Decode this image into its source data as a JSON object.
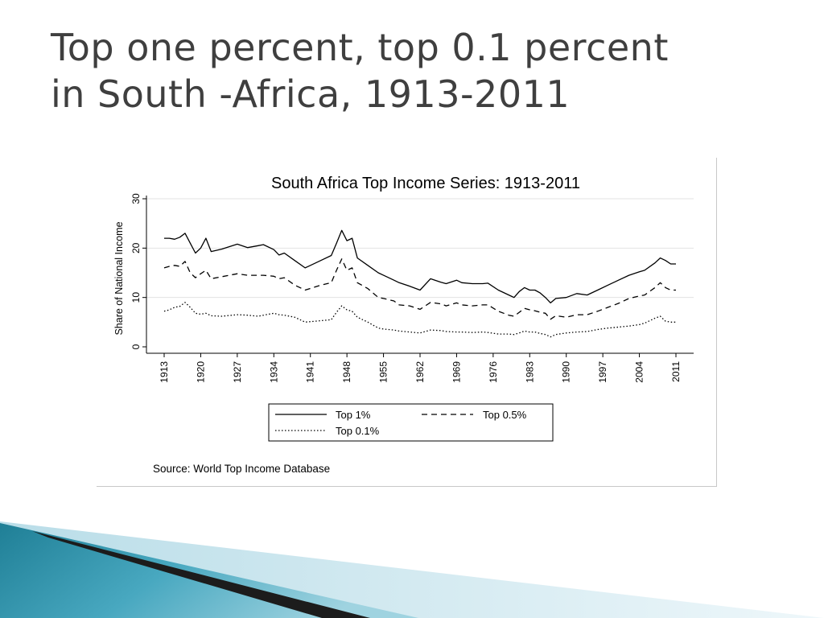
{
  "slide": {
    "title_line1": "Top one percent, top 0.1 percent",
    "title_line2": "in South -Africa, 1913-2011"
  },
  "colors": {
    "title": "#3f3f3f",
    "series": "#000000",
    "grid": "#e3e3e3",
    "accent_teal": "#2b8fa6",
    "accent_dark": "#1c1c1c"
  },
  "chart_data": {
    "type": "line",
    "title": "South Africa Top Income Series: 1913-2011",
    "ylabel": "Share of National Income",
    "xlabel": "",
    "xlim": [
      1913,
      2011
    ],
    "ylim": [
      0,
      30
    ],
    "xticks": [
      "1913",
      "1920",
      "1927",
      "1934",
      "1941",
      "1948",
      "1955",
      "1962",
      "1969",
      "1976",
      "1983",
      "1990",
      "1997",
      "2004",
      "2011"
    ],
    "yticks": [
      "0",
      "10",
      "20",
      "30"
    ],
    "grid": "horizontal",
    "legend_position": "bottom",
    "source": "Source: World Top Income Database",
    "series": [
      {
        "name": "Top 1%",
        "style": "solid",
        "points": [
          [
            1913,
            22
          ],
          [
            1914,
            22
          ],
          [
            1915,
            21.8
          ],
          [
            1916,
            22.2
          ],
          [
            1917,
            23
          ],
          [
            1918,
            21
          ],
          [
            1919,
            19
          ],
          [
            1920,
            20
          ],
          [
            1921,
            22
          ],
          [
            1922,
            19.3
          ],
          [
            1924,
            19.8
          ],
          [
            1927,
            20.8
          ],
          [
            1929,
            20.1
          ],
          [
            1931,
            20.5
          ],
          [
            1932,
            20.7
          ],
          [
            1934,
            19.7
          ],
          [
            1935,
            18.6
          ],
          [
            1936,
            19
          ],
          [
            1938,
            17.5
          ],
          [
            1940,
            16
          ],
          [
            1943,
            17.5
          ],
          [
            1945,
            18.5
          ],
          [
            1946,
            21
          ],
          [
            1947,
            23.6
          ],
          [
            1948,
            21.5
          ],
          [
            1949,
            22
          ],
          [
            1950,
            18
          ],
          [
            1952,
            16.5
          ],
          [
            1954,
            15
          ],
          [
            1955,
            14.5
          ],
          [
            1957,
            13.5
          ],
          [
            1958,
            13
          ],
          [
            1960,
            12.3
          ],
          [
            1962,
            11.5
          ],
          [
            1964,
            13.8
          ],
          [
            1966,
            13.1
          ],
          [
            1967,
            12.8
          ],
          [
            1969,
            13.5
          ],
          [
            1970,
            13
          ],
          [
            1972,
            12.8
          ],
          [
            1974,
            12.8
          ],
          [
            1975,
            12.9
          ],
          [
            1977,
            11.5
          ],
          [
            1979,
            10.5
          ],
          [
            1980,
            10
          ],
          [
            1981,
            11.2
          ],
          [
            1982,
            12
          ],
          [
            1983,
            11.5
          ],
          [
            1984,
            11.5
          ],
          [
            1985,
            10.9
          ],
          [
            1986,
            10
          ],
          [
            1987,
            8.9
          ],
          [
            1988,
            9.8
          ],
          [
            1990,
            10
          ],
          [
            1992,
            10.8
          ],
          [
            1994,
            10.5
          ],
          [
            1996,
            11.5
          ],
          [
            1998,
            12.5
          ],
          [
            2000,
            13.5
          ],
          [
            2002,
            14.5
          ],
          [
            2004,
            15.2
          ],
          [
            2005,
            15.5
          ],
          [
            2007,
            17
          ],
          [
            2008,
            18
          ],
          [
            2009,
            17.5
          ],
          [
            2010,
            16.8
          ],
          [
            2011,
            16.8
          ]
        ]
      },
      {
        "name": "Top 0.5%",
        "style": "dashed",
        "points": [
          [
            1913,
            16
          ],
          [
            1914,
            16.3
          ],
          [
            1915,
            16.5
          ],
          [
            1916,
            16.3
          ],
          [
            1917,
            17.3
          ],
          [
            1918,
            15
          ],
          [
            1919,
            14
          ],
          [
            1920,
            14.8
          ],
          [
            1921,
            15.5
          ],
          [
            1922,
            13.8
          ],
          [
            1924,
            14.2
          ],
          [
            1927,
            14.8
          ],
          [
            1929,
            14.5
          ],
          [
            1931,
            14.5
          ],
          [
            1932,
            14.5
          ],
          [
            1934,
            14.3
          ],
          [
            1935,
            13.8
          ],
          [
            1936,
            14
          ],
          [
            1938,
            12.5
          ],
          [
            1940,
            11.5
          ],
          [
            1943,
            12.5
          ],
          [
            1945,
            13
          ],
          [
            1946,
            15.5
          ],
          [
            1947,
            17.8
          ],
          [
            1948,
            15.5
          ],
          [
            1949,
            16
          ],
          [
            1950,
            13
          ],
          [
            1952,
            11.8
          ],
          [
            1954,
            10
          ],
          [
            1955,
            9.8
          ],
          [
            1957,
            9.3
          ],
          [
            1958,
            8.5
          ],
          [
            1960,
            8.3
          ],
          [
            1962,
            7.6
          ],
          [
            1964,
            9
          ],
          [
            1966,
            8.7
          ],
          [
            1967,
            8.3
          ],
          [
            1969,
            8.9
          ],
          [
            1970,
            8.5
          ],
          [
            1972,
            8.3
          ],
          [
            1974,
            8.5
          ],
          [
            1975,
            8.5
          ],
          [
            1977,
            7.2
          ],
          [
            1979,
            6.4
          ],
          [
            1980,
            6.2
          ],
          [
            1981,
            7
          ],
          [
            1982,
            7.8
          ],
          [
            1983,
            7.5
          ],
          [
            1984,
            7.3
          ],
          [
            1985,
            7
          ],
          [
            1986,
            6.8
          ],
          [
            1987,
            5.6
          ],
          [
            1988,
            6.3
          ],
          [
            1990,
            6
          ],
          [
            1992,
            6.5
          ],
          [
            1994,
            6.5
          ],
          [
            1996,
            7.2
          ],
          [
            1998,
            8
          ],
          [
            2000,
            8.8
          ],
          [
            2002,
            9.8
          ],
          [
            2004,
            10.3
          ],
          [
            2005,
            10.5
          ],
          [
            2007,
            12
          ],
          [
            2008,
            13
          ],
          [
            2009,
            12
          ],
          [
            2010,
            11.5
          ],
          [
            2011,
            11.5
          ]
        ]
      },
      {
        "name": "Top 0.1%",
        "style": "dotted",
        "points": [
          [
            1913,
            7.2
          ],
          [
            1914,
            7.5
          ],
          [
            1915,
            8
          ],
          [
            1916,
            8.2
          ],
          [
            1917,
            9
          ],
          [
            1918,
            8
          ],
          [
            1919,
            6.8
          ],
          [
            1920,
            6.6
          ],
          [
            1921,
            6.8
          ],
          [
            1922,
            6.3
          ],
          [
            1924,
            6.2
          ],
          [
            1927,
            6.5
          ],
          [
            1929,
            6.4
          ],
          [
            1931,
            6.2
          ],
          [
            1932,
            6.4
          ],
          [
            1934,
            6.8
          ],
          [
            1935,
            6.5
          ],
          [
            1936,
            6.4
          ],
          [
            1938,
            6
          ],
          [
            1940,
            5
          ],
          [
            1943,
            5.3
          ],
          [
            1945,
            5.5
          ],
          [
            1946,
            7
          ],
          [
            1947,
            8.3
          ],
          [
            1948,
            7.5
          ],
          [
            1949,
            7.2
          ],
          [
            1950,
            6
          ],
          [
            1952,
            5
          ],
          [
            1954,
            3.8
          ],
          [
            1955,
            3.6
          ],
          [
            1957,
            3.4
          ],
          [
            1958,
            3.2
          ],
          [
            1960,
            3
          ],
          [
            1962,
            2.8
          ],
          [
            1964,
            3.4
          ],
          [
            1966,
            3.3
          ],
          [
            1967,
            3.1
          ],
          [
            1969,
            3
          ],
          [
            1970,
            3
          ],
          [
            1972,
            2.9
          ],
          [
            1974,
            3
          ],
          [
            1975,
            2.9
          ],
          [
            1977,
            2.6
          ],
          [
            1979,
            2.6
          ],
          [
            1980,
            2.5
          ],
          [
            1981,
            2.8
          ],
          [
            1982,
            3.2
          ],
          [
            1983,
            3
          ],
          [
            1984,
            3
          ],
          [
            1985,
            2.7
          ],
          [
            1986,
            2.5
          ],
          [
            1987,
            2
          ],
          [
            1988,
            2.5
          ],
          [
            1990,
            2.8
          ],
          [
            1992,
            3
          ],
          [
            1994,
            3.1
          ],
          [
            1996,
            3.5
          ],
          [
            1998,
            3.8
          ],
          [
            2000,
            4
          ],
          [
            2002,
            4.2
          ],
          [
            2004,
            4.5
          ],
          [
            2005,
            4.8
          ],
          [
            2007,
            5.8
          ],
          [
            2008,
            6.2
          ],
          [
            2009,
            5.2
          ],
          [
            2010,
            5
          ],
          [
            2011,
            5
          ]
        ]
      }
    ]
  }
}
